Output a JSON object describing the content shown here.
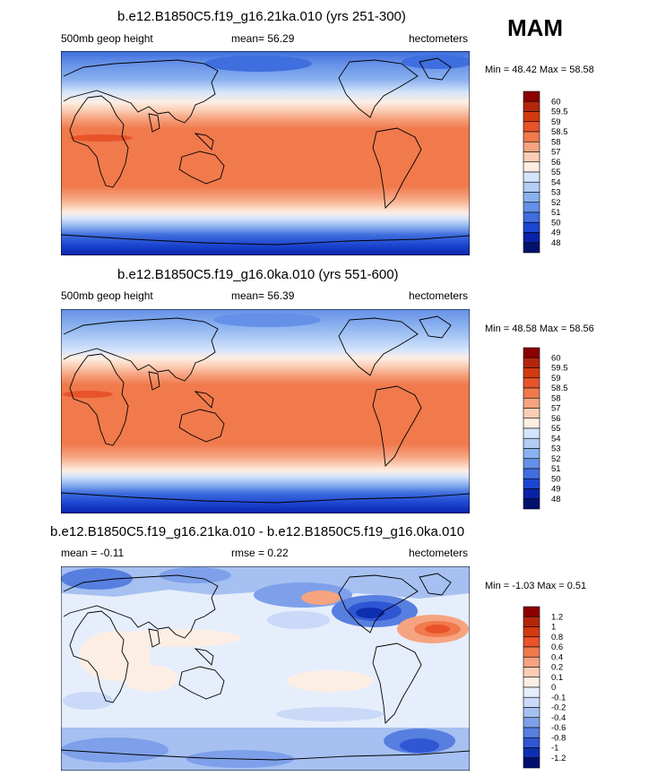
{
  "season": "MAM",
  "panels": [
    {
      "title": "b.e12.B1850C5.f19_g16.21ka.010 (yrs 251-300)",
      "left_label": "500mb geop height",
      "mean_label": "mean=",
      "mean_value": "56.29",
      "units": "hectometers",
      "min_label": "Min =",
      "min_value": "48.42",
      "max_label": "Max =",
      "max_value": "58.58"
    },
    {
      "title": "b.e12.B1850C5.f19_g16.0ka.010 (yrs 551-600)",
      "left_label": "500mb geop height",
      "mean_label": "mean=",
      "mean_value": "56.39",
      "units": "hectometers",
      "min_label": "Min =",
      "min_value": "48.58",
      "max_label": "Max =",
      "max_value": "58.56"
    },
    {
      "title": "b.e12.B1850C5.f19_g16.21ka.010 - b.e12.B1850C5.f19_g16.0ka.010",
      "left_label": "mean =",
      "left_value": "-0.11",
      "rmse_label": "rmse =",
      "rmse_value": "0.22",
      "units": "hectometers",
      "min_label": "Min =",
      "min_value": "-1.03",
      "max_label": "Max =",
      "max_value": "0.51"
    }
  ],
  "chart_data": [
    {
      "type": "heatmap",
      "title": "b.e12.B1850C5.f19_g16.21ka.010 (yrs 251-300)",
      "variable": "500mb geop height",
      "units": "hectometers",
      "mean": 56.29,
      "min": 48.42,
      "max": 58.58,
      "levels": [
        "60",
        "59.5",
        "59",
        "58.5",
        "58",
        "57",
        "56",
        "55",
        "54",
        "53",
        "52",
        "51",
        "50",
        "49",
        "48"
      ],
      "colors": [
        "#8b0000",
        "#b3260a",
        "#d43a10",
        "#e8532a",
        "#f07a4c",
        "#f6a380",
        "#fbcdb4",
        "#fdeee4",
        "#d4e4fb",
        "#b2cdf6",
        "#8ab1ef",
        "#6590e8",
        "#3f6ede",
        "#1c46d1",
        "#0a22a8",
        "#00126e"
      ]
    },
    {
      "type": "heatmap",
      "title": "b.e12.B1850C5.f19_g16.0ka.010 (yrs 551-600)",
      "variable": "500mb geop height",
      "units": "hectometers",
      "mean": 56.39,
      "min": 48.58,
      "max": 58.56,
      "levels": [
        "60",
        "59.5",
        "59",
        "58.5",
        "58",
        "57",
        "56",
        "55",
        "54",
        "53",
        "52",
        "51",
        "50",
        "49",
        "48"
      ],
      "colors": [
        "#8b0000",
        "#b3260a",
        "#d43a10",
        "#e8532a",
        "#f07a4c",
        "#f6a380",
        "#fbcdb4",
        "#fdeee4",
        "#d4e4fb",
        "#b2cdf6",
        "#8ab1ef",
        "#6590e8",
        "#3f6ede",
        "#1c46d1",
        "#0a22a8",
        "#00126e"
      ]
    },
    {
      "type": "heatmap",
      "title": "b.e12.B1850C5.f19_g16.21ka.010 - b.e12.B1850C5.f19_g16.0ka.010",
      "units": "hectometers",
      "mean": -0.11,
      "rmse": 0.22,
      "min": -1.03,
      "max": 0.51,
      "levels": [
        "1.2",
        "1",
        "0.8",
        "0.6",
        "0.4",
        "0.2",
        "0.1",
        "0",
        "-0.1",
        "-0.2",
        "-0.4",
        "-0.6",
        "-0.8",
        "-1",
        "-1.2"
      ],
      "colors": [
        "#8b0000",
        "#b3260a",
        "#d43a10",
        "#e8532a",
        "#f07a4c",
        "#f6a380",
        "#fbcdb4",
        "#fdeee4",
        "#e6eefb",
        "#c9d9f7",
        "#a6c0f1",
        "#7ea0ea",
        "#577fe0",
        "#2f56d3",
        "#0e2eb0",
        "#001070"
      ]
    }
  ]
}
